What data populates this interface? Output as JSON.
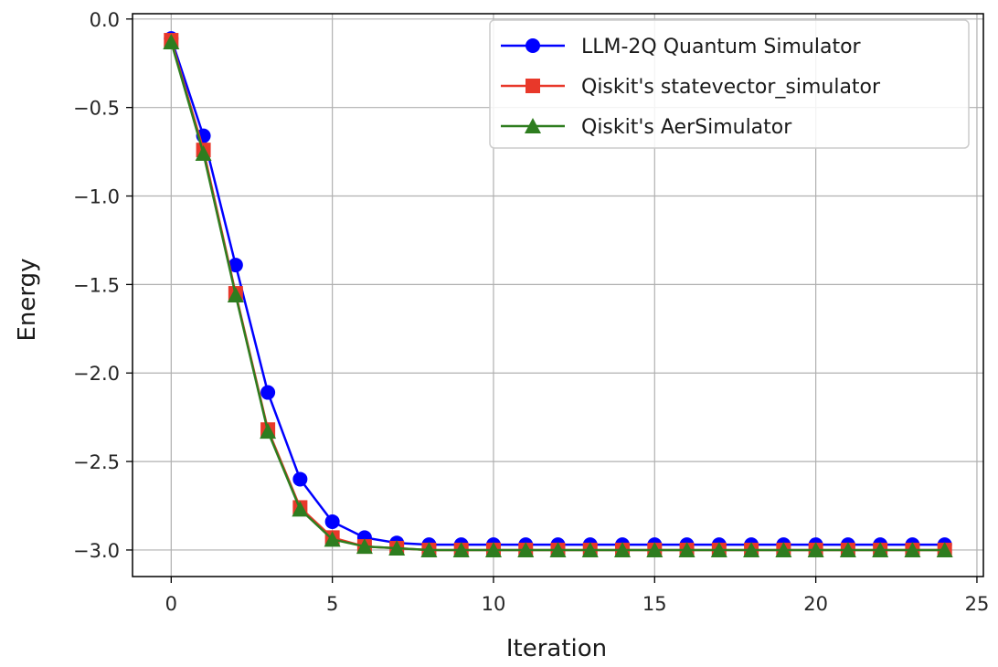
{
  "chart_data": {
    "type": "line",
    "xlabel": "Iteration",
    "ylabel": "Energy",
    "xlim": [
      -1.2,
      25.2
    ],
    "ylim": [
      -3.15,
      0.03
    ],
    "xticks": [
      0,
      5,
      10,
      15,
      20,
      25
    ],
    "xtick_labels": [
      "0",
      "5",
      "10",
      "15",
      "20",
      "25"
    ],
    "yticks": [
      0.0,
      -0.5,
      -1.0,
      -1.5,
      -2.0,
      -2.5,
      -3.0
    ],
    "ytick_labels": [
      "0.0",
      "−0.5",
      "−1.0",
      "−1.5",
      "−2.0",
      "−2.5",
      "−3.0"
    ],
    "grid": true,
    "legend_position": "top-right",
    "x": [
      0,
      1,
      2,
      3,
      4,
      5,
      6,
      7,
      8,
      9,
      10,
      11,
      12,
      13,
      14,
      15,
      16,
      17,
      18,
      19,
      20,
      21,
      22,
      23,
      24
    ],
    "series": [
      {
        "name": "LLM-2Q Quantum Simulator",
        "color": "#0000ff",
        "marker": "circle",
        "values": [
          -0.11,
          -0.66,
          -1.39,
          -2.11,
          -2.6,
          -2.84,
          -2.93,
          -2.96,
          -2.97,
          -2.97,
          -2.97,
          -2.97,
          -2.97,
          -2.97,
          -2.97,
          -2.97,
          -2.97,
          -2.97,
          -2.97,
          -2.97,
          -2.97,
          -2.97,
          -2.97,
          -2.97,
          -2.97
        ]
      },
      {
        "name": "Qiskit's statevector_simulator",
        "color": "#e8382a",
        "marker": "square",
        "values": [
          -0.12,
          -0.74,
          -1.55,
          -2.32,
          -2.76,
          -2.93,
          -2.98,
          -2.99,
          -3.0,
          -3.0,
          -3.0,
          -3.0,
          -3.0,
          -3.0,
          -3.0,
          -3.0,
          -3.0,
          -3.0,
          -3.0,
          -3.0,
          -3.0,
          -3.0,
          -3.0,
          -3.0,
          -3.0
        ]
      },
      {
        "name": "Qiskit's AerSimulator",
        "color": "#2e7d1f",
        "marker": "triangle",
        "values": [
          -0.13,
          -0.76,
          -1.56,
          -2.33,
          -2.77,
          -2.94,
          -2.98,
          -2.99,
          -3.0,
          -3.0,
          -3.0,
          -3.0,
          -3.0,
          -3.0,
          -3.0,
          -3.0,
          -3.0,
          -3.0,
          -3.0,
          -3.0,
          -3.0,
          -3.0,
          -3.0,
          -3.0,
          -3.0
        ]
      }
    ]
  }
}
